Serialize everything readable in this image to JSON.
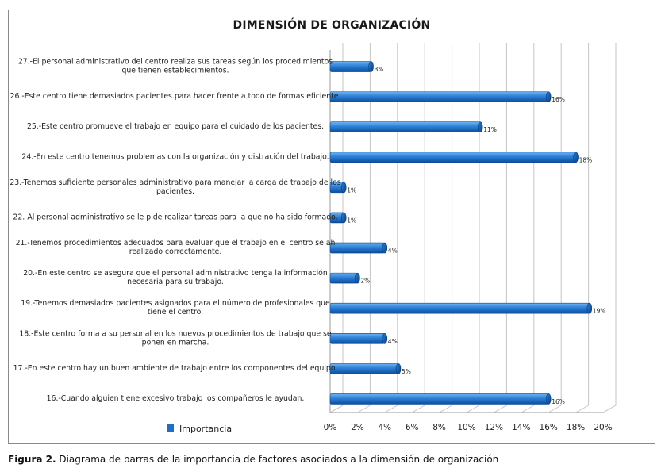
{
  "figure": {
    "caption_label": "Figura 2.",
    "caption_text": " Diagrama de barras de la importancia de factores asociados a la dimensión de organización"
  },
  "chart_data": {
    "type": "bar",
    "orientation": "horizontal",
    "title": "DIMENSIÓN DE ORGANIZACIÓN",
    "xlabel": "",
    "ylabel": "",
    "xlim": [
      0,
      20
    ],
    "x_ticks": [
      "0%",
      "2%",
      "4%",
      "6%",
      "8%",
      "10%",
      "12%",
      "14%",
      "16%",
      "18%",
      "20%"
    ],
    "grid": true,
    "legend_position": "bottom-left",
    "categories": [
      [
        "27.-El personal administrativo del centro realiza sus tareas según los procedimientos",
        "que tienen establecimientos."
      ],
      [
        "26.-Este centro tiene demasiados pacientes para hacer frente a todo de formas eficiente."
      ],
      [
        "25.-Este centro promueve el trabajo en equipo para el cuidado de los pacientes."
      ],
      [
        "24.-En este centro tenemos problemas con la organización y distración del trabajo."
      ],
      [
        "23.-Tenemos suficiente personales administrativo para manejar la carga de trabajo de los",
        "pacientes."
      ],
      [
        "22.-Al personal administrativo se le pide realizar tareas para la que no ha sido formado."
      ],
      [
        "21.-Tenemos procedimientos adecuados para evaluar que el trabajo en el centro se ah",
        "realizado correctamente."
      ],
      [
        "20.-En este centro se asegura que el personal administrativo tenga la información",
        "necesaria para su trabajo."
      ],
      [
        "19.-Tenemos demasiados pacientes asignados para el número de profesionales que",
        "tiene el centro."
      ],
      [
        "18.-Este centro forma a su personal en los nuevos procedimientos de trabajo que se",
        "ponen en marcha."
      ],
      [
        "17.-En este centro hay un buen ambiente de trabajo entre los componentes del equipo."
      ],
      [
        "16.-Cuando alguien tiene excesivo trabajo los compañeros le ayudan."
      ]
    ],
    "series": [
      {
        "name": "Importancia",
        "color": "#1f6fc8",
        "values": [
          3,
          16,
          11,
          18,
          1,
          1,
          4,
          2,
          19,
          4,
          5,
          16
        ],
        "labels": [
          "3%",
          "16%",
          "11%",
          "18%",
          "1%",
          "1%",
          "4%",
          "2%",
          "19%",
          "4%",
          "5%",
          "16%"
        ]
      }
    ]
  }
}
